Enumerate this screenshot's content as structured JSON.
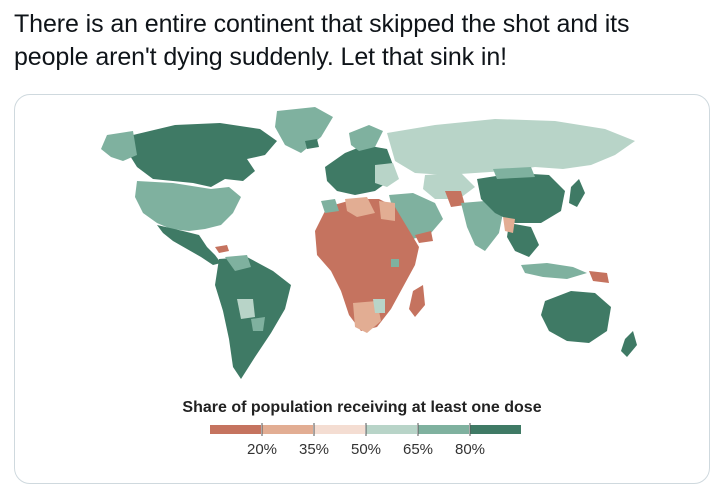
{
  "tweet": {
    "text": "There is an entire continent that skipped the shot and its people aren't dying suddenly. Let that sink in!"
  },
  "map": {
    "legend_title": "Share of population receiving at least one dose",
    "legend_labels": [
      "20%",
      "35%",
      "50%",
      "65%",
      "80%"
    ],
    "legend_colors": [
      "#c5735f",
      "#e2ad93",
      "#f4ddd2",
      "#b8d4c8",
      "#7fb19f",
      "#3f7a65"
    ]
  },
  "colors": {
    "dark_green": "#3f7a65",
    "mid_green": "#7fb19f",
    "light_green": "#b8d4c8",
    "pale": "#f4ddd2",
    "light_red": "#e2ad93",
    "red": "#c5735f",
    "text": "#0f1419",
    "border": "#cfd9de"
  }
}
